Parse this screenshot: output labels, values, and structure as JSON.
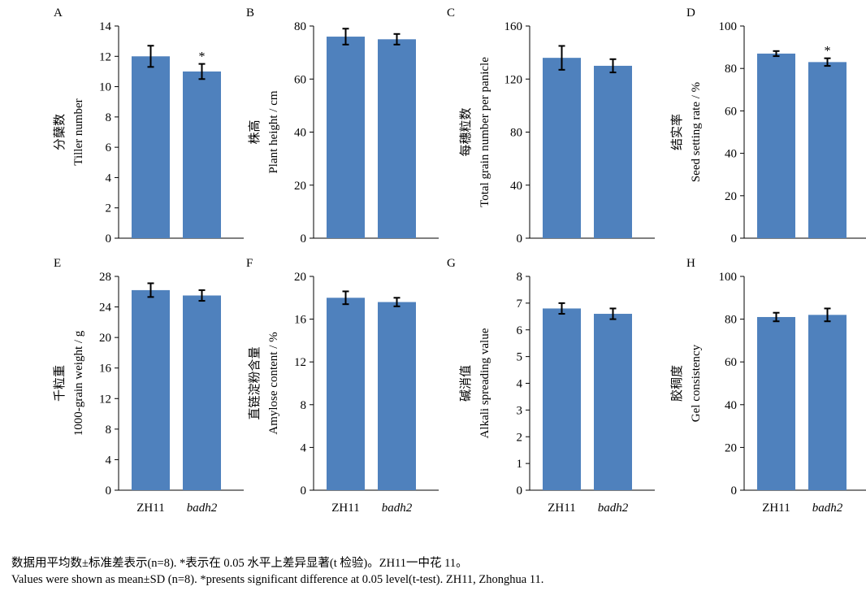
{
  "chart_data": [
    {
      "panel": "A",
      "type": "bar",
      "categories": [
        "ZH11",
        "badh2"
      ],
      "values": [
        12.0,
        11.0
      ],
      "errors": [
        0.7,
        0.5
      ],
      "significance": [
        "",
        "*"
      ],
      "ylabel_cn": "分蘖数",
      "ylabel_en": "Tiller number",
      "ylim": [
        0,
        14
      ],
      "yticks": [
        0,
        2,
        4,
        6,
        8,
        10,
        12,
        14
      ],
      "show_categories": false,
      "bar_color": "#4f81bd"
    },
    {
      "panel": "B",
      "type": "bar",
      "categories": [
        "ZH11",
        "badh2"
      ],
      "values": [
        76,
        75
      ],
      "errors": [
        3,
        2
      ],
      "significance": [
        "",
        ""
      ],
      "ylabel_cn": "株高",
      "ylabel_en": "Plant height / cm",
      "ylim": [
        0,
        80
      ],
      "yticks": [
        0,
        20,
        40,
        60,
        80
      ],
      "show_categories": false,
      "bar_color": "#4f81bd"
    },
    {
      "panel": "C",
      "type": "bar",
      "categories": [
        "ZH11",
        "badh2"
      ],
      "values": [
        136,
        130
      ],
      "errors": [
        9,
        5
      ],
      "significance": [
        "",
        ""
      ],
      "ylabel_cn": "每穗粒数",
      "ylabel_en": "Total grain number per panicle",
      "ylim": [
        0,
        160
      ],
      "yticks": [
        0,
        40,
        80,
        120,
        160
      ],
      "show_categories": false,
      "bar_color": "#4f81bd"
    },
    {
      "panel": "D",
      "type": "bar",
      "categories": [
        "ZH11",
        "badh2"
      ],
      "values": [
        87,
        83
      ],
      "errors": [
        1.2,
        1.8
      ],
      "significance": [
        "",
        "*"
      ],
      "ylabel_cn": "结实率",
      "ylabel_en": "Seed setting rate / %",
      "ylim": [
        0,
        100
      ],
      "yticks": [
        0,
        20,
        40,
        60,
        80,
        100
      ],
      "show_categories": false,
      "bar_color": "#4f81bd"
    },
    {
      "panel": "E",
      "type": "bar",
      "categories": [
        "ZH11",
        "badh2"
      ],
      "values": [
        26.2,
        25.5
      ],
      "errors": [
        0.9,
        0.7
      ],
      "significance": [
        "",
        ""
      ],
      "ylabel_cn": "千粒重",
      "ylabel_en": "1000-grain weight / g",
      "ylim": [
        0,
        28
      ],
      "yticks": [
        0,
        4,
        8,
        12,
        16,
        20,
        24,
        28
      ],
      "show_categories": true,
      "bar_color": "#4f81bd"
    },
    {
      "panel": "F",
      "type": "bar",
      "categories": [
        "ZH11",
        "badh2"
      ],
      "values": [
        18.0,
        17.6
      ],
      "errors": [
        0.6,
        0.4
      ],
      "significance": [
        "",
        ""
      ],
      "ylabel_cn": "直链淀粉含量",
      "ylabel_en": "Amylose content / %",
      "ylim": [
        0,
        20
      ],
      "yticks": [
        0,
        4,
        8,
        12,
        16,
        20
      ],
      "show_categories": true,
      "bar_color": "#4f81bd"
    },
    {
      "panel": "G",
      "type": "bar",
      "categories": [
        "ZH11",
        "badh2"
      ],
      "values": [
        6.8,
        6.6
      ],
      "errors": [
        0.2,
        0.2
      ],
      "significance": [
        "",
        ""
      ],
      "ylabel_cn": "碱消值",
      "ylabel_en": "Alkali spreading value",
      "ylim": [
        0,
        8
      ],
      "yticks": [
        0,
        1,
        2,
        3,
        4,
        5,
        6,
        7,
        8
      ],
      "show_categories": true,
      "bar_color": "#4f81bd"
    },
    {
      "panel": "H",
      "type": "bar",
      "categories": [
        "ZH11",
        "badh2"
      ],
      "values": [
        81,
        82
      ],
      "errors": [
        2,
        3
      ],
      "significance": [
        "",
        ""
      ],
      "ylabel_cn": "胶稠度",
      "ylabel_en": "Gel consistency",
      "ylim": [
        0,
        100
      ],
      "yticks": [
        0,
        20,
        40,
        60,
        80,
        100
      ],
      "show_categories": true,
      "bar_color": "#4f81bd"
    }
  ],
  "caption": {
    "cn": "数据用平均数±标准差表示(n=8). *表示在 0.05 水平上差异显著(t 检验)。ZH11一中花 11。",
    "en": "Values were shown as mean±SD (n=8). *presents significant difference at 0.05 level(t-test). ZH11, Zhonghua 11."
  }
}
